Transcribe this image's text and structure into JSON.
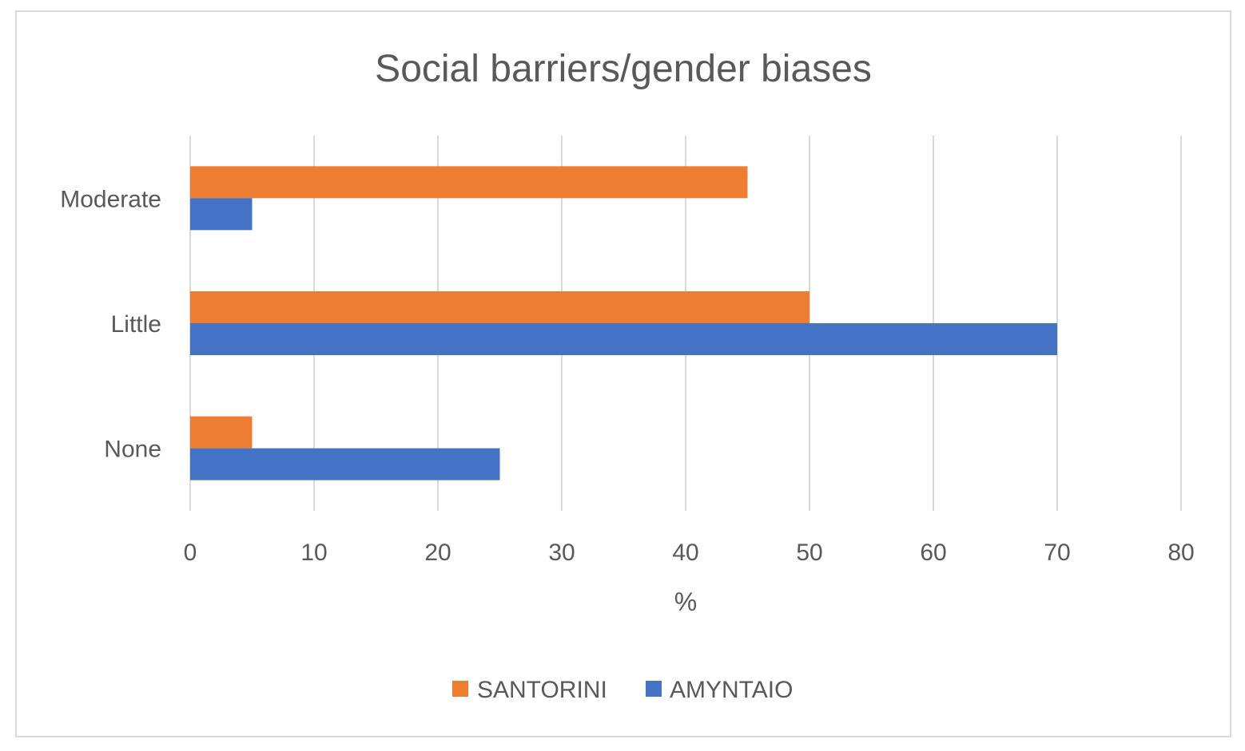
{
  "chart_data": {
    "type": "bar",
    "orientation": "horizontal",
    "title": "Social barriers/gender biases",
    "xlabel": "%",
    "ylabel": "",
    "xlim": [
      0,
      80
    ],
    "xticks": [
      0,
      10,
      20,
      30,
      40,
      50,
      60,
      70,
      80
    ],
    "grid": true,
    "legend_position": "bottom",
    "categories": [
      "Moderate",
      "Little",
      "None"
    ],
    "series": [
      {
        "name": "SANTORINI",
        "color": "#ED7D31",
        "values": [
          45,
          50,
          5
        ]
      },
      {
        "name": "AMYNTAIO",
        "color": "#4472C4",
        "values": [
          5,
          70,
          25
        ]
      }
    ]
  }
}
